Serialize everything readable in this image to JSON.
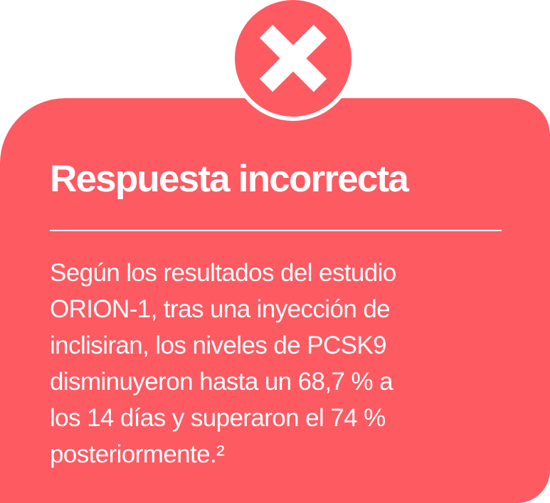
{
  "colors": {
    "card": "#fd5a62",
    "text": "#ffffff"
  },
  "badge": {
    "icon": "close-x-icon"
  },
  "title": "Respuesta incorrecta",
  "body_lines": [
    "Según los resultados del estudio",
    "ORION-1, tras una inyección de",
    "inclisiran, los niveles de PCSK9",
    "disminuyeron hasta un 68,7 % a",
    "los 14 días y superaron el 74 %",
    "posteriormente.²"
  ]
}
